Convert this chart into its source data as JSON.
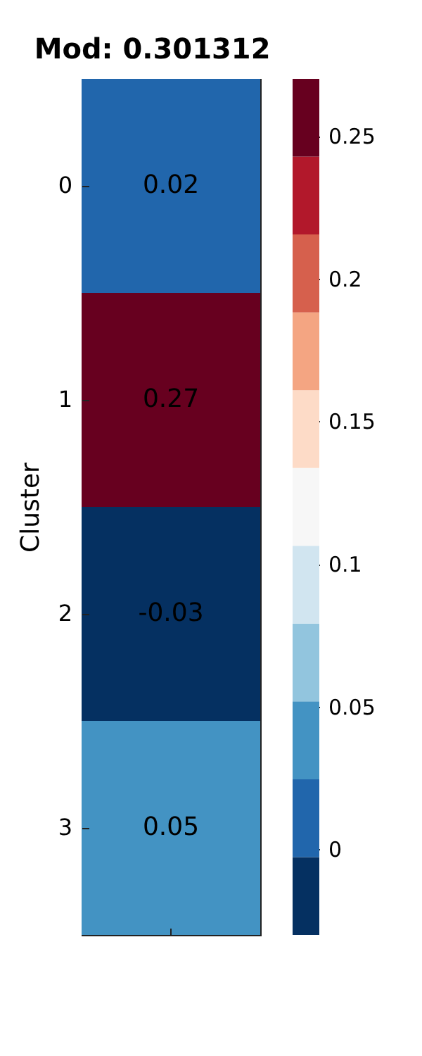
{
  "chart_data": {
    "type": "heatmap",
    "title": "Mod: 0.301312",
    "ylabel": "Cluster",
    "categories": [
      null
    ],
    "y_categories": [
      "0",
      "1",
      "2",
      "3"
    ],
    "cells": [
      [
        0.02
      ],
      [
        0.27
      ],
      [
        -0.03
      ],
      [
        0.05
      ]
    ],
    "clim": [
      -0.03,
      0.27
    ],
    "cticks": [
      0,
      0.05,
      0.1,
      0.15,
      0.2,
      0.25
    ],
    "data_labels": true,
    "tick_labels": "y"
  }
}
